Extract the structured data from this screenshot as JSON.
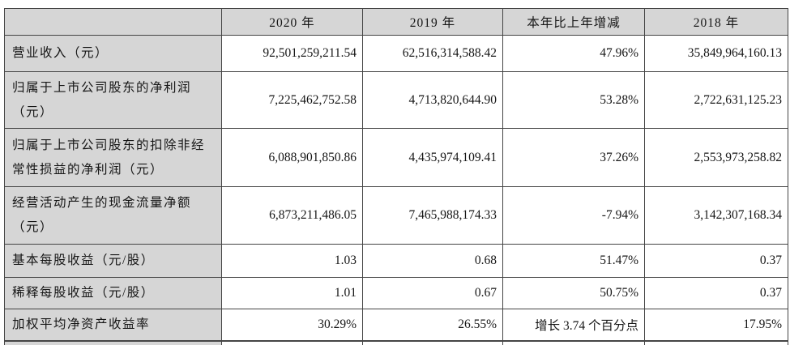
{
  "colors": {
    "shaded_cell_bg": "#d6d6d6",
    "border": "#454545",
    "text": "#161616"
  },
  "table": {
    "columns": [
      "",
      "2020 年",
      "2019 年",
      "本年比上年增减",
      "2018 年"
    ],
    "rows": [
      {
        "label": "营业收入（元）",
        "v2020": "92,501,259,211.54",
        "v2019": "62,516,314,588.42",
        "change": "47.96%",
        "v2018": "35,849,964,160.13"
      },
      {
        "label": "归属于上市公司股东的净利润（元）",
        "v2020": "7,225,462,752.58",
        "v2019": "4,713,820,644.90",
        "change": "53.28%",
        "v2018": "2,722,631,125.23"
      },
      {
        "label": "归属于上市公司股东的扣除非经常性损益的净利润（元）",
        "v2020": "6,088,901,850.86",
        "v2019": "4,435,974,109.41",
        "change": "37.26%",
        "v2018": "2,553,973,258.82"
      },
      {
        "label": "经营活动产生的现金流量净额（元）",
        "v2020": "6,873,211,486.05",
        "v2019": "7,465,988,174.33",
        "change": "-7.94%",
        "v2018": "3,142,307,168.34"
      },
      {
        "label": "基本每股收益（元/股）",
        "v2020": "1.03",
        "v2019": "0.68",
        "change": "51.47%",
        "v2018": "0.37"
      },
      {
        "label": "稀释每股收益（元/股）",
        "v2020": "1.01",
        "v2019": "0.67",
        "change": "50.75%",
        "v2018": "0.37"
      },
      {
        "label": "加权平均净资产收益率",
        "v2020": "30.29%",
        "v2019": "26.55%",
        "change": "增长 3.74 个百分点",
        "v2018": "17.95%"
      }
    ]
  }
}
